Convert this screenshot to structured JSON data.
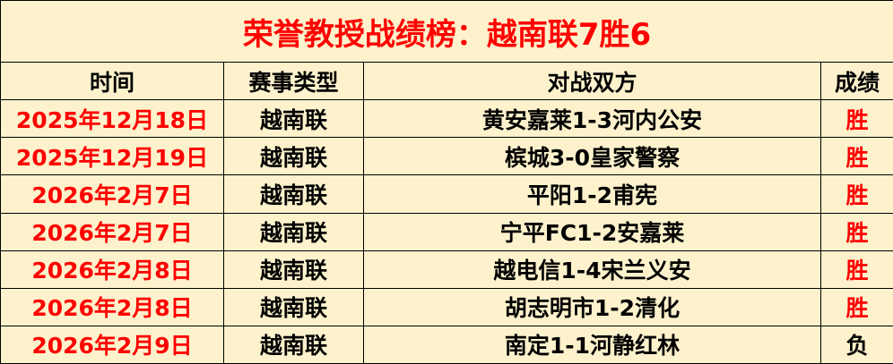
{
  "title": "荣誉教授战绩榜：越南联7胜6",
  "headers": [
    "时间",
    "赛事类型",
    "对战双方",
    "成绩"
  ],
  "colors": {
    "red": "#ff0000",
    "background": "#fdf2cc"
  },
  "rows": [
    {
      "date": "2025年12月18日",
      "type": "越南联",
      "match": "黄安嘉莱1-3河内公安",
      "result": "胜"
    },
    {
      "date": "2025年12月19日",
      "type": "越南联",
      "match": "槟城3-0皇家警察",
      "result": "胜"
    },
    {
      "date": "2026年2月7日",
      "type": "越南联",
      "match": "平阳1-2甫宪",
      "result": "胜"
    },
    {
      "date": "2026年2月7日",
      "type": "越南联",
      "match": "宁平FC1-2安嘉莱",
      "result": "胜"
    },
    {
      "date": "2026年2月8日",
      "type": "越南联",
      "match": "越电信1-4宋兰义安",
      "result": "胜"
    },
    {
      "date": "2026年2月8日",
      "type": "越南联",
      "match": "胡志明市1-2清化",
      "result": "胜"
    },
    {
      "date": "2026年2月9日",
      "type": "越南联",
      "match": "南定1-1河静红林",
      "result": "负"
    }
  ]
}
